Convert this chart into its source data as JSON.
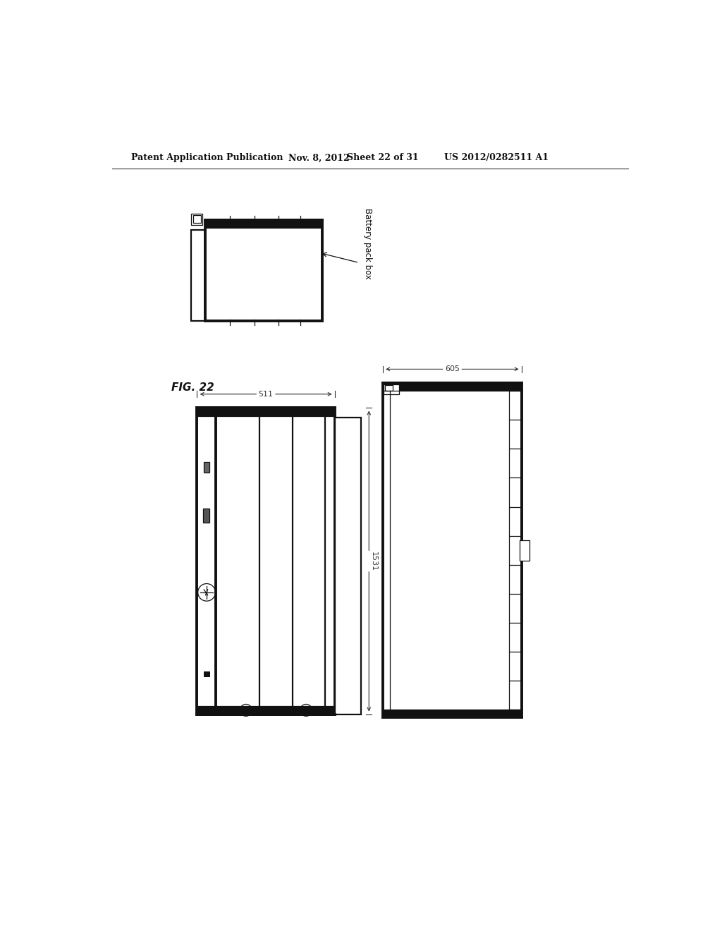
{
  "bg_color": "#ffffff",
  "header_text": "Patent Application Publication",
  "header_date": "Nov. 8, 2012",
  "header_sheet": "Sheet 22 of 31",
  "header_patent": "US 2012/0282511 A1",
  "fig_label": "FIG. 22",
  "label_battery": "Battery pack box",
  "dim_top_width": "511",
  "dim_right_width": "605",
  "dim_right_height": "1531",
  "color_main": "#111111",
  "color_dim": "#333333",
  "color_dark_fill": "#111111",
  "lw_thick": 2.8,
  "lw_medium": 1.6,
  "lw_thin": 0.9,
  "lw_dim": 0.8
}
